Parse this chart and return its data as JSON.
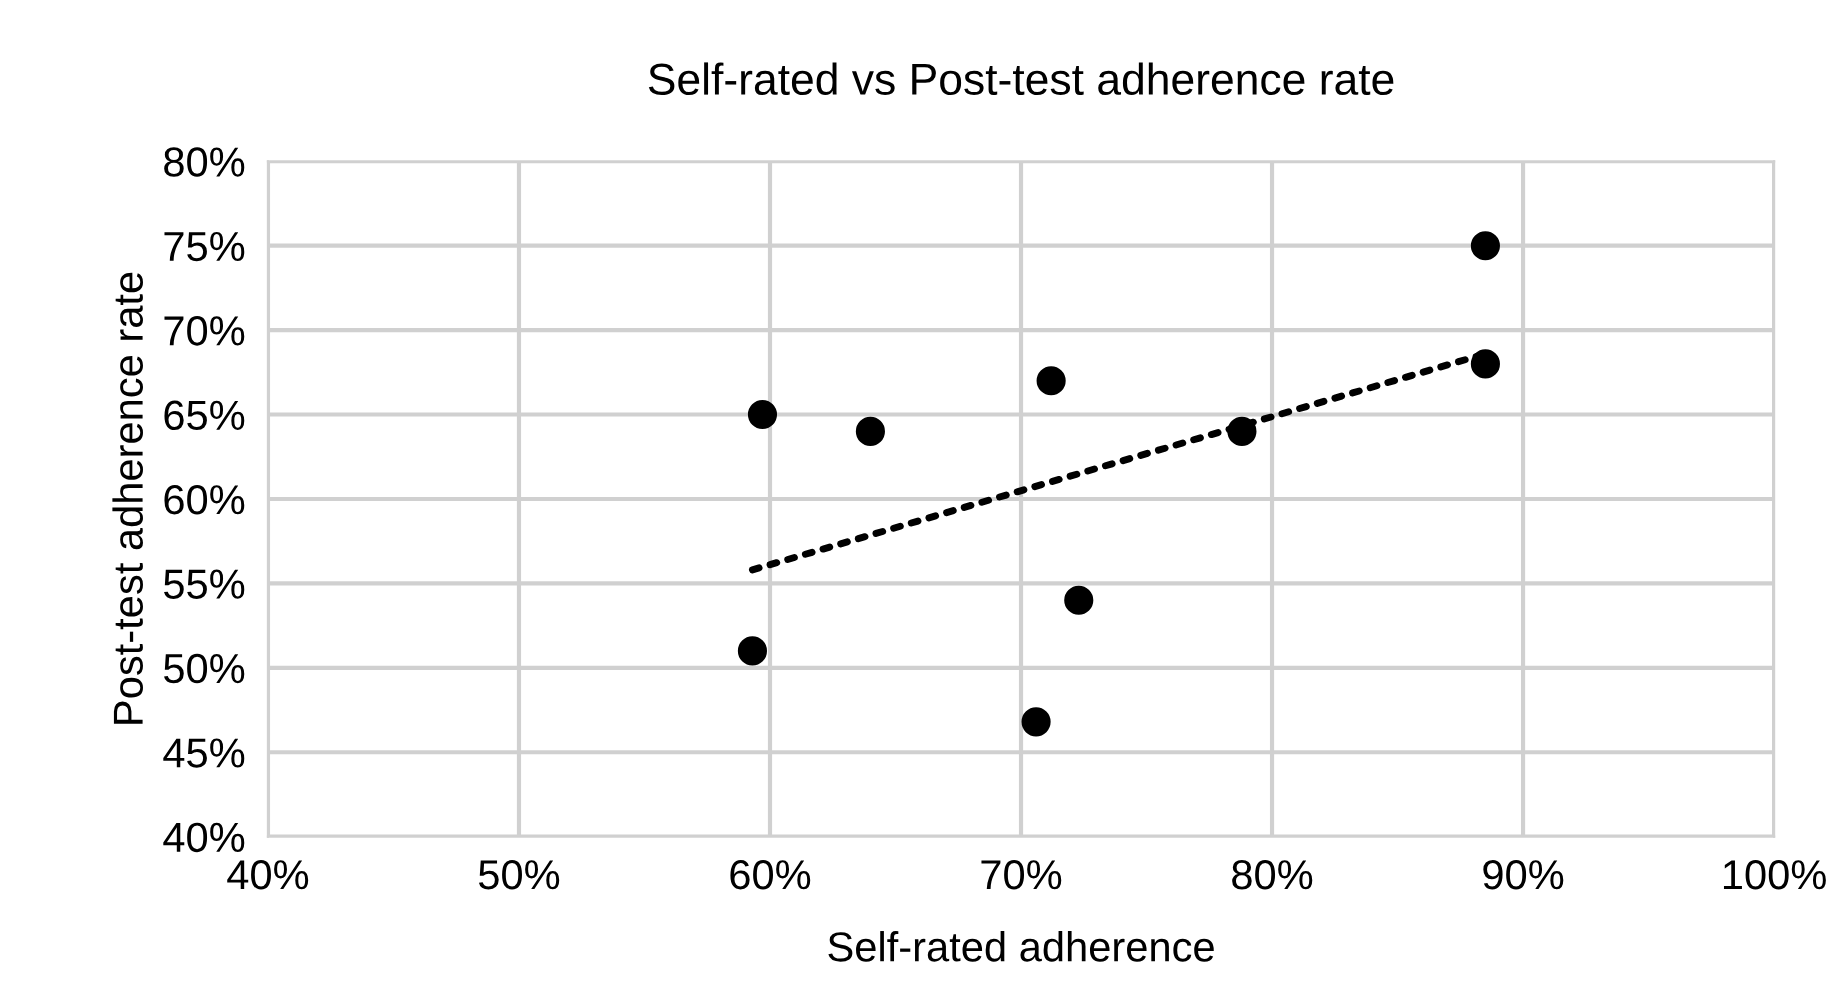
{
  "chart_data": {
    "type": "scatter",
    "title": "Self-rated vs Post-test adherence rate",
    "xlabel": "Self-rated adherence",
    "ylabel": "Post-test adherence rate",
    "x": [
      59.7,
      64.0,
      59.3,
      70.6,
      71.2,
      72.3,
      78.8,
      88.5,
      88.5
    ],
    "series": [
      {
        "color": "#000000",
        "marker": "circle",
        "values": [
          65,
          64,
          51,
          46.8,
          67,
          54,
          64,
          75,
          68
        ]
      },
      {
        "type": "line",
        "color": "#000000",
        "line_style": "dotted",
        "x": [
          59.3,
          88.5
        ],
        "values": [
          55.8,
          68.6
        ]
      }
    ],
    "xlim": [
      40,
      100
    ],
    "ylim": [
      40,
      80
    ],
    "xticks": [
      {
        "value": 40,
        "label": "40%"
      },
      {
        "value": 50,
        "label": "50%"
      },
      {
        "value": 60,
        "label": "60%"
      },
      {
        "value": 70,
        "label": "70%"
      },
      {
        "value": 80,
        "label": "80%"
      },
      {
        "value": 90,
        "label": "90%"
      },
      {
        "value": 100,
        "label": "100%"
      }
    ],
    "yticks": [
      {
        "value": 40,
        "label": "40%"
      },
      {
        "value": 45,
        "label": "45%"
      },
      {
        "value": 50,
        "label": "50%"
      },
      {
        "value": 55,
        "label": "55%"
      },
      {
        "value": 60,
        "label": "60%"
      },
      {
        "value": 65,
        "label": "65%"
      },
      {
        "value": 70,
        "label": "70%"
      },
      {
        "value": 75,
        "label": "75%"
      },
      {
        "value": 80,
        "label": "80%"
      }
    ],
    "grid": true
  }
}
